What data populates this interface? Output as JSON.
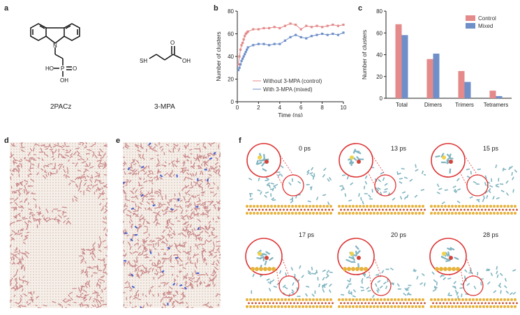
{
  "panels": {
    "a": "a",
    "b": "b",
    "c": "c",
    "d": "d",
    "e": "e",
    "f": "f"
  },
  "molecules": {
    "m1": {
      "name": "2PACz",
      "ho": "HO",
      "o": "O",
      "oh": "OH",
      "p": "P",
      "n": "N"
    },
    "m2": {
      "name": "3-MPA",
      "sh": "SH",
      "oh": "OH",
      "o": "O"
    }
  },
  "colors": {
    "control": "#e48a8a",
    "mixed": "#6f8fc9",
    "sim_pink": "#c9898a",
    "sim_blue": "#3d5bd0",
    "substrate_gold": "#e6b23a",
    "substrate_red": "#c24a2c",
    "mol_teal": "#7fb4c0"
  },
  "chart_data": [
    {
      "type": "line",
      "xlabel": "Time (ns)",
      "ylabel": "Number of clusters",
      "xlim": [
        0,
        10
      ],
      "ylim": [
        0,
        80
      ],
      "xticks": [
        0,
        2,
        4,
        6,
        8,
        10
      ],
      "yticks": [
        0,
        20,
        40,
        60,
        80
      ],
      "series": [
        {
          "name": "Without 3-MPA (control)",
          "x": [
            0.1,
            0.2,
            0.3,
            0.4,
            0.5,
            0.6,
            0.7,
            0.8,
            0.9,
            1.0,
            1.5,
            2,
            2.5,
            3,
            3.5,
            4,
            4.5,
            5,
            5.5,
            6,
            6.5,
            7,
            7.5,
            8,
            8.5,
            9,
            9.5,
            10
          ],
          "y": [
            33,
            40,
            46,
            50,
            52,
            55,
            58,
            60,
            61,
            62,
            64,
            64,
            65,
            65,
            66,
            65,
            67,
            69,
            68,
            64,
            67,
            66,
            67,
            66,
            67,
            68,
            67,
            68
          ]
        },
        {
          "name": "With 3-MPA (mixed)",
          "x": [
            0.1,
            0.2,
            0.3,
            0.4,
            0.5,
            0.6,
            0.7,
            0.8,
            0.9,
            1.0,
            1.5,
            2,
            2.5,
            3,
            3.5,
            4,
            4.5,
            5,
            5.5,
            6,
            6.5,
            7,
            7.5,
            8,
            8.5,
            9,
            9.5,
            10
          ],
          "y": [
            28,
            30,
            33,
            36,
            38,
            40,
            42,
            44,
            46,
            48,
            50,
            51,
            51,
            50,
            51,
            51,
            54,
            57,
            59,
            57,
            56,
            58,
            59,
            60,
            59,
            60,
            59,
            61
          ]
        }
      ]
    },
    {
      "type": "bar",
      "ylabel": "Number of clusters",
      "ylim": [
        0,
        80
      ],
      "yticks": [
        0,
        20,
        40,
        60,
        80
      ],
      "categories": [
        "Total",
        "Dimers",
        "Trimers",
        "Tetramers"
      ],
      "legend_position": "top-right",
      "series": [
        {
          "name": "Control",
          "values": [
            68,
            36,
            25,
            7
          ]
        },
        {
          "name": "Mixed",
          "values": [
            58,
            41,
            15,
            2
          ]
        }
      ]
    }
  ],
  "snapshots": [
    {
      "time": "0 ps"
    },
    {
      "time": "13 ps"
    },
    {
      "time": "15 ps"
    },
    {
      "time": "17 ps"
    },
    {
      "time": "20 ps"
    },
    {
      "time": "28 ps"
    }
  ]
}
